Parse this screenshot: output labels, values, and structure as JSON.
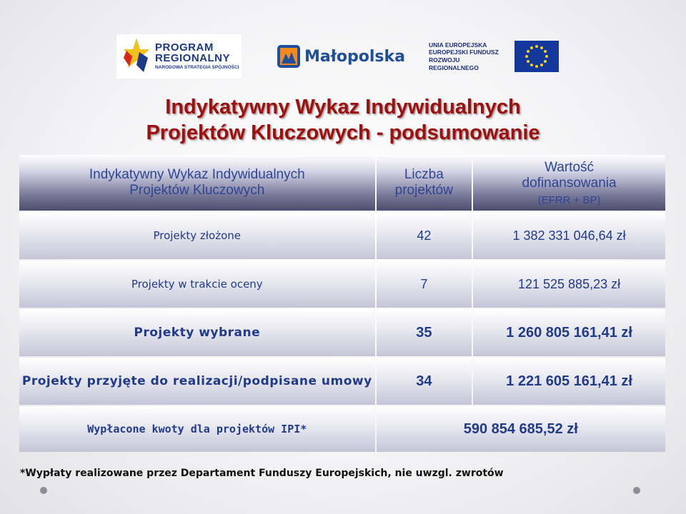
{
  "logos": {
    "program_regionalny": {
      "line1": "PROGRAM",
      "line2": "REGIONALNY",
      "line3": "NARODOWA STRATEGIA SPÓJNOŚCI"
    },
    "malopolska": {
      "name": "Małopolska"
    },
    "ue": {
      "line1": "UNIA EUROPEJSKA",
      "line2": "EUROPEJSKI FUNDUSZ",
      "line3": "ROZWOJU REGIONALNEGO"
    }
  },
  "title": {
    "line1": "Indykatywny Wykaz Indywidualnych",
    "line2": "Projektów Kluczowych - podsumowanie"
  },
  "table": {
    "headers": {
      "col1_line1": "Indykatywny Wykaz Indywidualnych",
      "col1_line2": "Projektów Kluczowych",
      "col2_line1": "Liczba",
      "col2_line2": "projektów",
      "col3_line1": "Wartość",
      "col3_line2": "dofinansowania",
      "col3_line3": "(EFRR + BP)"
    },
    "rows": [
      {
        "label": "Projekty złożone",
        "count": "42",
        "value": "1 382 331 046,64 zł"
      },
      {
        "label": "Projekty w trakcie oceny",
        "count": "7",
        "value": "121 525 885,23 zł"
      },
      {
        "label": "Projekty wybrane",
        "count": "35",
        "value": "1 260 805 161,41 zł"
      },
      {
        "label": "Projekty przyjęte do realizacji/podpisane umowy",
        "count": "34",
        "value": "1 221 605 161,41 zł"
      },
      {
        "label": "Wypłacone kwoty dla projektów IPI*",
        "value": "590 854 685,52 zł"
      }
    ]
  },
  "footnote": "*Wypłaty realizowane przez Departament Funduszy Europejskich, nie uwzgl. zwrotów",
  "colors": {
    "title": "#9b1111",
    "text": "#223a8a",
    "header_dark": "#4c4c6e"
  }
}
